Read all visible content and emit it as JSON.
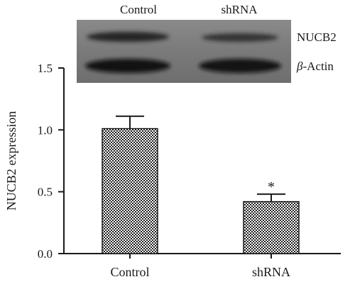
{
  "chart_data": {
    "type": "bar",
    "categories": [
      "Control",
      "shRNA"
    ],
    "values": [
      1.01,
      0.42
    ],
    "errors": [
      0.1,
      0.06
    ],
    "significance": [
      "",
      "*"
    ],
    "ylabel": "NUCB2 expression",
    "ylim": [
      0,
      1.5
    ],
    "yticks": [
      "0.0",
      "0.5",
      "1.0",
      "1.5"
    ],
    "grid": false,
    "bar_fill": "checkerboard",
    "bar_color": "#222222"
  },
  "blot": {
    "lane_labels": [
      "Control",
      "shRNA"
    ],
    "band_labels": [
      {
        "greek": "",
        "text": "NUCB2"
      },
      {
        "greek": "β",
        "text": "-Actin"
      }
    ]
  }
}
